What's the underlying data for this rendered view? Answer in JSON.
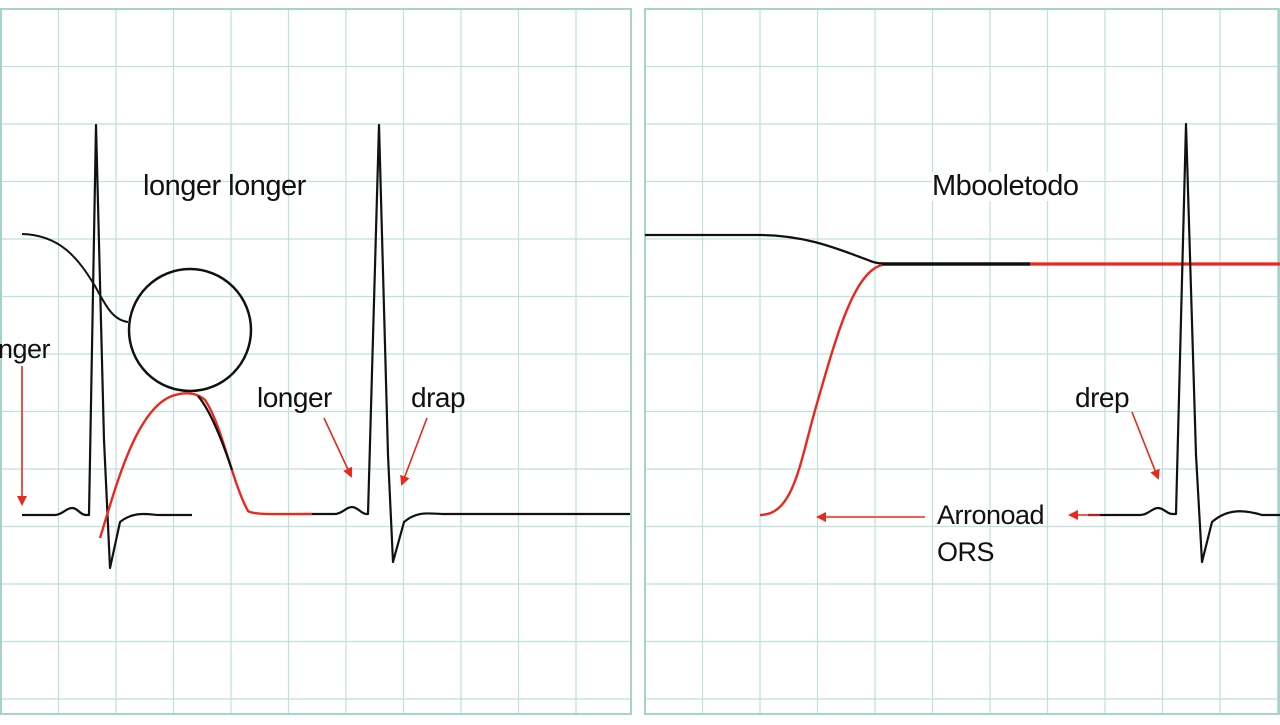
{
  "colors": {
    "grid": "#bfe0dc",
    "panel_border": "#a9d2cc",
    "trace": "#111111",
    "highlight": "#e8291c"
  },
  "left_panel": {
    "title": "longer longer",
    "side_label": "nger",
    "mid_label": "longer",
    "drop_label": "drap"
  },
  "right_panel": {
    "title": "Mbooletodo",
    "drop_label": "drep",
    "annotation_line1": "Arronoad",
    "annotation_line2": "ORS"
  }
}
